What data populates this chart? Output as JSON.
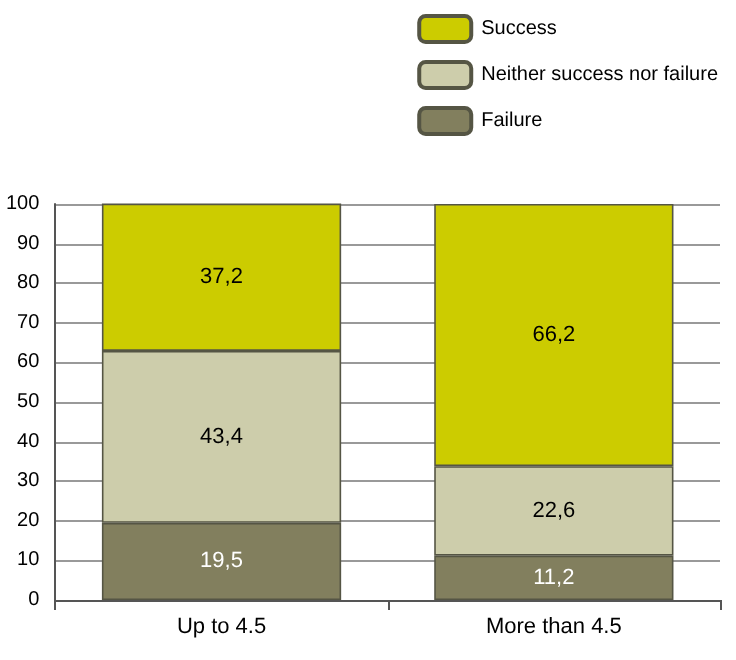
{
  "chart_data": {
    "type": "bar",
    "stacked": true,
    "categories": [
      "Up to 4.5",
      "More than 4.5"
    ],
    "series": [
      {
        "name": "Failure",
        "color": "#827f5e",
        "values": [
          19.5,
          11.2
        ],
        "value_labels": [
          "19,5",
          "11,2"
        ]
      },
      {
        "name": "Neither success nor failure",
        "color": "#cdcdab",
        "values": [
          43.4,
          22.6
        ],
        "value_labels": [
          "43,4",
          "22,6"
        ]
      },
      {
        "name": "Success",
        "color": "#cccc00",
        "values": [
          37.2,
          66.2
        ],
        "value_labels": [
          "37,2",
          "66,2"
        ]
      }
    ],
    "ylim": [
      0,
      100
    ],
    "yticks": [
      0,
      10,
      20,
      30,
      40,
      50,
      60,
      70,
      80,
      90,
      100
    ],
    "grid": "y",
    "legend": "top right"
  }
}
